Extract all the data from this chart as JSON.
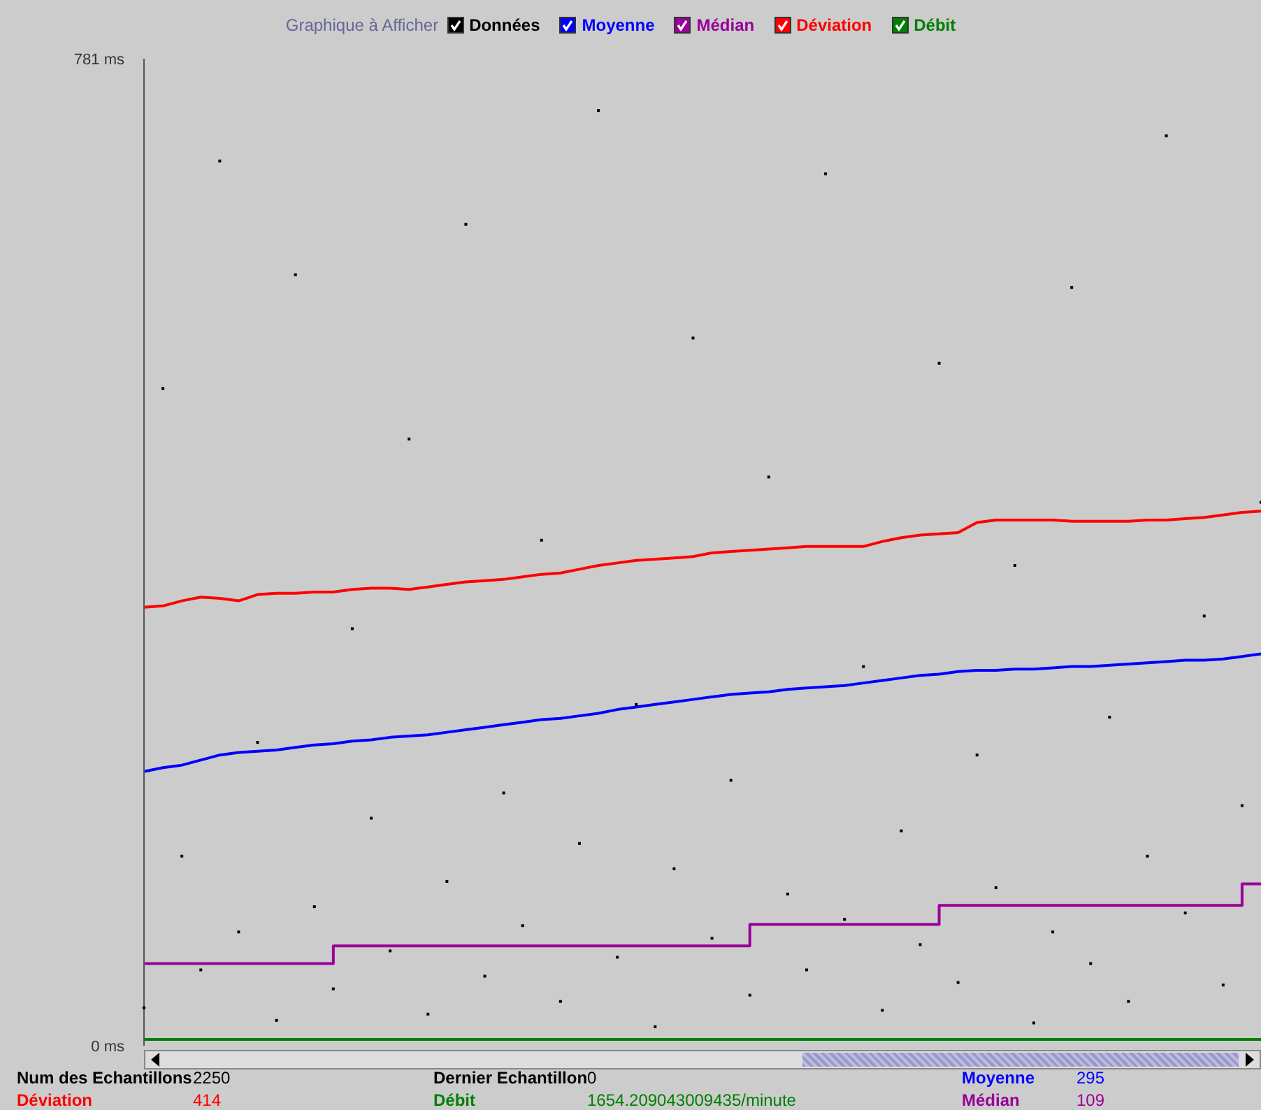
{
  "chart_data": {
    "type": "line",
    "legend_title": "Graphique à Afficher",
    "legend": "top",
    "marker": "none",
    "grid": false,
    "categories": [
      null,
      null,
      null,
      null,
      null,
      null,
      null,
      null,
      null,
      null,
      null,
      null,
      null,
      null,
      null,
      null,
      null,
      null,
      null,
      null,
      null,
      null,
      null,
      null,
      null,
      null,
      null,
      null,
      null,
      null,
      null,
      null,
      null,
      null,
      null,
      null,
      null,
      null,
      null,
      null,
      null,
      null,
      null,
      null,
      null,
      null,
      null,
      null,
      null,
      null,
      null,
      null,
      null,
      null,
      null,
      null,
      null,
      null,
      null,
      null
    ],
    "ylim": [
      0,
      781
    ],
    "yticks": [
      {
        "value": 781,
        "label": "781 ms"
      },
      {
        "value": 0,
        "label": "0 ms"
      }
    ],
    "series": [
      {
        "name": "Données",
        "type": "scatter",
        "marker": "square",
        "color": "#000000",
        "values": [
          30,
          520,
          150,
          60,
          700,
          90,
          240,
          20,
          610,
          110,
          45,
          330,
          180,
          75,
          480,
          25,
          130,
          650,
          55,
          200,
          95,
          400,
          35,
          160,
          740,
          70,
          270,
          15,
          140,
          560,
          85,
          210,
          40,
          450,
          120,
          60,
          690,
          100,
          300,
          28,
          170,
          80,
          540,
          50,
          230,
          125,
          380,
          18,
          90,
          600,
          65,
          260,
          35,
          150,
          720,
          105,
          340,
          48,
          190,
          430
        ]
      },
      {
        "name": "Moyenne",
        "color": "#0000ff",
        "values": [
          217,
          220,
          222,
          226,
          230,
          232,
          233,
          234,
          236,
          238,
          239,
          241,
          242,
          244,
          245,
          246,
          248,
          250,
          252,
          254,
          256,
          258,
          259,
          261,
          263,
          266,
          268,
          270,
          272,
          274,
          276,
          278,
          279,
          280,
          282,
          283,
          284,
          285,
          287,
          289,
          291,
          293,
          294,
          296,
          297,
          297,
          298,
          298,
          299,
          300,
          300,
          301,
          302,
          303,
          304,
          305,
          305,
          306,
          308,
          310
        ]
      },
      {
        "name": "Médian",
        "type": "step",
        "color": "#990099",
        "values": [
          65,
          65,
          65,
          65,
          65,
          65,
          65,
          65,
          65,
          65,
          79,
          79,
          79,
          79,
          79,
          79,
          79,
          79,
          79,
          79,
          79,
          79,
          79,
          79,
          79,
          79,
          79,
          79,
          79,
          79,
          79,
          79,
          96,
          96,
          96,
          96,
          96,
          96,
          96,
          96,
          96,
          96,
          111,
          111,
          111,
          111,
          111,
          111,
          111,
          111,
          111,
          111,
          111,
          111,
          111,
          111,
          111,
          111,
          128,
          128
        ]
      },
      {
        "name": "Déviation",
        "color": "#ff0000",
        "values": [
          347,
          348,
          352,
          355,
          354,
          352,
          357,
          358,
          358,
          359,
          359,
          361,
          362,
          362,
          361,
          363,
          365,
          367,
          368,
          369,
          371,
          373,
          374,
          377,
          380,
          382,
          384,
          385,
          386,
          387,
          390,
          391,
          392,
          393,
          394,
          395,
          395,
          395,
          395,
          399,
          402,
          404,
          405,
          406,
          414,
          416,
          416,
          416,
          416,
          415,
          415,
          415,
          415,
          416,
          416,
          417,
          418,
          420,
          422,
          423
        ]
      },
      {
        "name": "Débit",
        "color": "#008000",
        "values": [
          5,
          5,
          5,
          5,
          5,
          5,
          5,
          5,
          5,
          5,
          5,
          5,
          5,
          5,
          5,
          5,
          5,
          5,
          5,
          5,
          5,
          5,
          5,
          5,
          5,
          5,
          5,
          5,
          5,
          5,
          5,
          5,
          5,
          5,
          5,
          5,
          5,
          5,
          5,
          5,
          5,
          5,
          5,
          5,
          5,
          5,
          5,
          5,
          5,
          5,
          5,
          5,
          5,
          5,
          5,
          5,
          5,
          5,
          5,
          5
        ]
      }
    ],
    "annotations": [
      "Num des Echantillons",
      "2250",
      "Dernier Echantillon",
      "0",
      "Moyenne",
      "295",
      "Déviation",
      "414",
      "Débit",
      "1654.209043009435/minute",
      "Médian",
      "109"
    ]
  }
}
